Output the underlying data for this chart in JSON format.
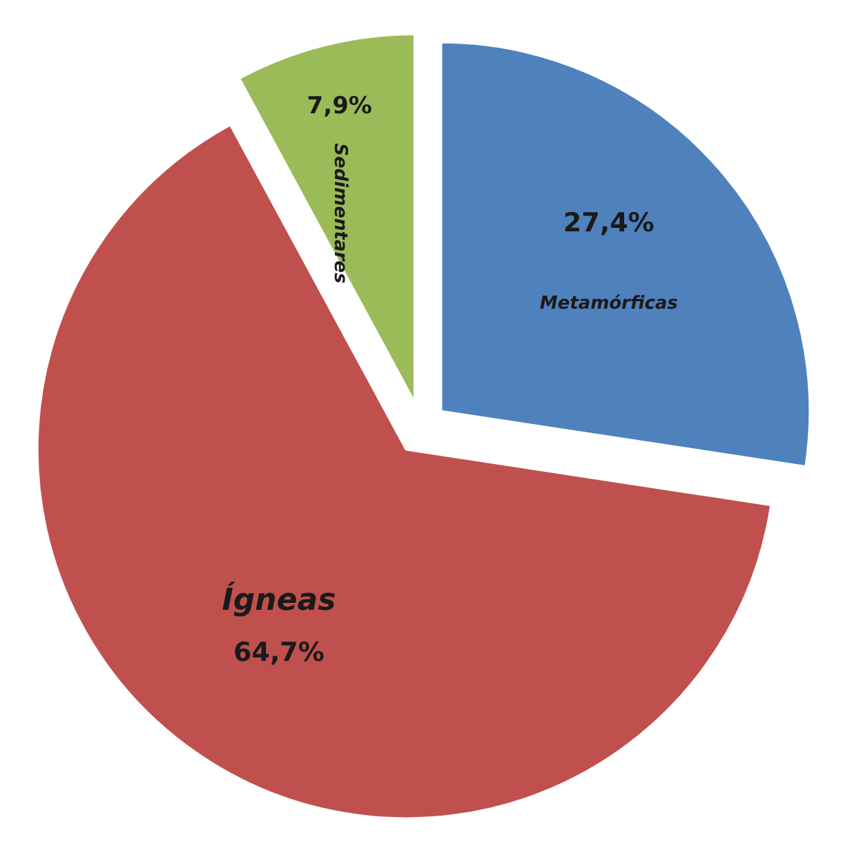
{
  "chart_data": {
    "type": "pie",
    "categories": [
      "Metamórficas",
      "Ígneas",
      "Sedimentares"
    ],
    "values": [
      27.4,
      64.7,
      7.9
    ],
    "colors": [
      "#4f81bd",
      "#c0504d",
      "#9bbb59"
    ],
    "value_labels": [
      "27,4%",
      "64,7%",
      "7,9%"
    ]
  }
}
